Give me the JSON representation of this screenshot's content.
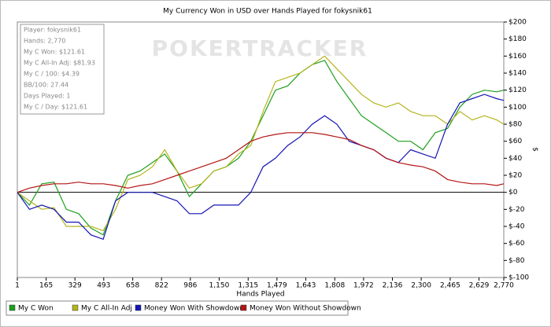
{
  "chart_data": {
    "type": "line",
    "title": "My Currency Won in USD over Hands Played for fokysnik61",
    "watermark": "POKERTRACKER",
    "x_label": "Hands Played",
    "y_label": "$",
    "info_box": [
      "Player: fokysnik61",
      "Hands: 2,770",
      "My C Won: $121.61",
      "My C All-In Adj: $81.93",
      "My C / 100: $4.39",
      "BB/100: 27.44",
      "Days Played: 1",
      "My C / Day: $121.61"
    ],
    "x": [
      1,
      70,
      140,
      210,
      280,
      350,
      420,
      490,
      560,
      630,
      700,
      770,
      840,
      910,
      980,
      1050,
      1120,
      1190,
      1260,
      1330,
      1400,
      1470,
      1540,
      1610,
      1680,
      1750,
      1820,
      1890,
      1960,
      2030,
      2100,
      2170,
      2240,
      2310,
      2380,
      2450,
      2520,
      2590,
      2660,
      2730,
      2770
    ],
    "series": [
      {
        "name": "My C Won",
        "color": "#1ea01e",
        "values": [
          0,
          -15,
          10,
          12,
          -20,
          -25,
          -42,
          -50,
          -10,
          20,
          25,
          35,
          45,
          25,
          -5,
          10,
          25,
          30,
          40,
          60,
          90,
          120,
          125,
          140,
          150,
          155,
          130,
          110,
          90,
          80,
          70,
          60,
          60,
          50,
          70,
          75,
          100,
          115,
          120,
          118,
          120
        ]
      },
      {
        "name": "My C All-In Adj",
        "color": "#b4b41e",
        "values": [
          0,
          -10,
          -20,
          -18,
          -40,
          -40,
          -40,
          -45,
          -20,
          15,
          20,
          30,
          50,
          25,
          5,
          10,
          25,
          30,
          45,
          55,
          95,
          130,
          135,
          140,
          150,
          160,
          145,
          130,
          115,
          105,
          100,
          105,
          95,
          90,
          90,
          80,
          95,
          85,
          90,
          85,
          80
        ]
      },
      {
        "name": "Money Won With Showdown",
        "color": "#1414b4",
        "values": [
          0,
          -20,
          -15,
          -20,
          -35,
          -35,
          -50,
          -55,
          -10,
          0,
          0,
          0,
          -5,
          -10,
          -25,
          -25,
          -15,
          -15,
          -15,
          0,
          30,
          40,
          55,
          65,
          80,
          90,
          80,
          60,
          55,
          50,
          40,
          35,
          50,
          45,
          40,
          80,
          105,
          110,
          115,
          110,
          108
        ]
      },
      {
        "name": "Money Won Without Showdown",
        "color": "#b41414",
        "values": [
          0,
          5,
          8,
          10,
          10,
          12,
          10,
          10,
          8,
          5,
          8,
          10,
          15,
          20,
          25,
          30,
          35,
          40,
          50,
          60,
          65,
          68,
          70,
          70,
          70,
          68,
          65,
          62,
          55,
          50,
          40,
          35,
          32,
          30,
          25,
          15,
          12,
          10,
          10,
          8,
          10
        ]
      }
    ],
    "xlim": [
      1,
      2770
    ],
    "xticks": [
      1,
      165,
      329,
      493,
      658,
      822,
      986,
      {
        "value": 1150,
        "label": "1,150"
      },
      {
        "value": 1315,
        "label": "1,315"
      },
      {
        "value": 1479,
        "label": "1,479"
      },
      {
        "value": 1643,
        "label": "1,643"
      },
      {
        "value": 1808,
        "label": "1,808"
      },
      {
        "value": 1972,
        "label": "1,972"
      },
      {
        "value": 2136,
        "label": "2,136"
      },
      {
        "value": 2300,
        "label": "2,300"
      },
      {
        "value": 2465,
        "label": "2,465"
      },
      {
        "value": 2629,
        "label": "2,629"
      },
      {
        "value": 2770,
        "label": "2,770"
      }
    ],
    "ylim": [
      -100,
      200
    ],
    "yticks": [
      {
        "value": 200,
        "label": "$200"
      },
      {
        "value": 180,
        "label": "$180"
      },
      {
        "value": 160,
        "label": "$160"
      },
      {
        "value": 140,
        "label": "$140"
      },
      {
        "value": 120,
        "label": "$120"
      },
      {
        "value": 100,
        "label": "$100"
      },
      {
        "value": 80,
        "label": "$80"
      },
      {
        "value": 60,
        "label": "$60"
      },
      {
        "value": 40,
        "label": "$40"
      },
      {
        "value": 20,
        "label": "$20"
      },
      {
        "value": 0,
        "label": "$0"
      },
      {
        "value": -20,
        "label": "$-20"
      },
      {
        "value": -40,
        "label": "$-40"
      },
      {
        "value": -60,
        "label": "$-60"
      },
      {
        "value": -80,
        "label": "$-80"
      },
      {
        "value": -100,
        "label": "$-100"
      }
    ],
    "legend": "bottom"
  }
}
